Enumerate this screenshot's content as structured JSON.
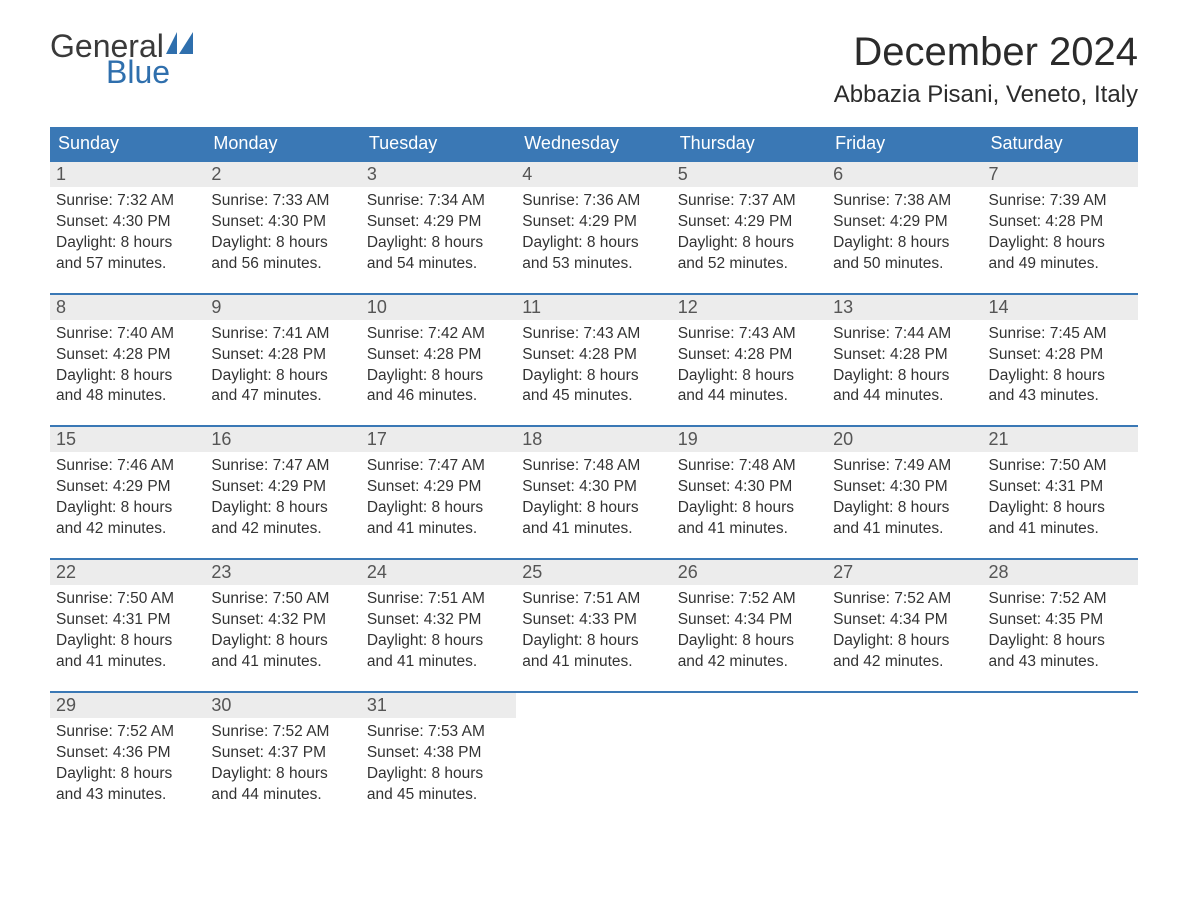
{
  "brand": {
    "word1": "General",
    "word2": "Blue",
    "word1_color": "#3a3a3a",
    "word2_color": "#2f6fad",
    "icon_color": "#2f6fad"
  },
  "title": {
    "month": "December 2024",
    "location": "Abbazia Pisani, Veneto, Italy"
  },
  "colors": {
    "header_bg": "#3a78b5",
    "header_text": "#ffffff",
    "daynum_bg": "#ececec",
    "daynum_text": "#555555",
    "body_text": "#333333",
    "week_border": "#3a78b5",
    "page_bg": "#ffffff"
  },
  "typography": {
    "month_title_fontsize": 40,
    "location_fontsize": 24,
    "dayhead_fontsize": 18,
    "daynum_fontsize": 18,
    "body_fontsize": 15.5,
    "font_family": "Arial"
  },
  "calendar": {
    "type": "table",
    "columns": [
      "Sunday",
      "Monday",
      "Tuesday",
      "Wednesday",
      "Thursday",
      "Friday",
      "Saturday"
    ],
    "weeks": [
      [
        {
          "num": "1",
          "sunrise": "Sunrise: 7:32 AM",
          "sunset": "Sunset: 4:30 PM",
          "day1": "Daylight: 8 hours",
          "day2": "and 57 minutes."
        },
        {
          "num": "2",
          "sunrise": "Sunrise: 7:33 AM",
          "sunset": "Sunset: 4:30 PM",
          "day1": "Daylight: 8 hours",
          "day2": "and 56 minutes."
        },
        {
          "num": "3",
          "sunrise": "Sunrise: 7:34 AM",
          "sunset": "Sunset: 4:29 PM",
          "day1": "Daylight: 8 hours",
          "day2": "and 54 minutes."
        },
        {
          "num": "4",
          "sunrise": "Sunrise: 7:36 AM",
          "sunset": "Sunset: 4:29 PM",
          "day1": "Daylight: 8 hours",
          "day2": "and 53 minutes."
        },
        {
          "num": "5",
          "sunrise": "Sunrise: 7:37 AM",
          "sunset": "Sunset: 4:29 PM",
          "day1": "Daylight: 8 hours",
          "day2": "and 52 minutes."
        },
        {
          "num": "6",
          "sunrise": "Sunrise: 7:38 AM",
          "sunset": "Sunset: 4:29 PM",
          "day1": "Daylight: 8 hours",
          "day2": "and 50 minutes."
        },
        {
          "num": "7",
          "sunrise": "Sunrise: 7:39 AM",
          "sunset": "Sunset: 4:28 PM",
          "day1": "Daylight: 8 hours",
          "day2": "and 49 minutes."
        }
      ],
      [
        {
          "num": "8",
          "sunrise": "Sunrise: 7:40 AM",
          "sunset": "Sunset: 4:28 PM",
          "day1": "Daylight: 8 hours",
          "day2": "and 48 minutes."
        },
        {
          "num": "9",
          "sunrise": "Sunrise: 7:41 AM",
          "sunset": "Sunset: 4:28 PM",
          "day1": "Daylight: 8 hours",
          "day2": "and 47 minutes."
        },
        {
          "num": "10",
          "sunrise": "Sunrise: 7:42 AM",
          "sunset": "Sunset: 4:28 PM",
          "day1": "Daylight: 8 hours",
          "day2": "and 46 minutes."
        },
        {
          "num": "11",
          "sunrise": "Sunrise: 7:43 AM",
          "sunset": "Sunset: 4:28 PM",
          "day1": "Daylight: 8 hours",
          "day2": "and 45 minutes."
        },
        {
          "num": "12",
          "sunrise": "Sunrise: 7:43 AM",
          "sunset": "Sunset: 4:28 PM",
          "day1": "Daylight: 8 hours",
          "day2": "and 44 minutes."
        },
        {
          "num": "13",
          "sunrise": "Sunrise: 7:44 AM",
          "sunset": "Sunset: 4:28 PM",
          "day1": "Daylight: 8 hours",
          "day2": "and 44 minutes."
        },
        {
          "num": "14",
          "sunrise": "Sunrise: 7:45 AM",
          "sunset": "Sunset: 4:28 PM",
          "day1": "Daylight: 8 hours",
          "day2": "and 43 minutes."
        }
      ],
      [
        {
          "num": "15",
          "sunrise": "Sunrise: 7:46 AM",
          "sunset": "Sunset: 4:29 PM",
          "day1": "Daylight: 8 hours",
          "day2": "and 42 minutes."
        },
        {
          "num": "16",
          "sunrise": "Sunrise: 7:47 AM",
          "sunset": "Sunset: 4:29 PM",
          "day1": "Daylight: 8 hours",
          "day2": "and 42 minutes."
        },
        {
          "num": "17",
          "sunrise": "Sunrise: 7:47 AM",
          "sunset": "Sunset: 4:29 PM",
          "day1": "Daylight: 8 hours",
          "day2": "and 41 minutes."
        },
        {
          "num": "18",
          "sunrise": "Sunrise: 7:48 AM",
          "sunset": "Sunset: 4:30 PM",
          "day1": "Daylight: 8 hours",
          "day2": "and 41 minutes."
        },
        {
          "num": "19",
          "sunrise": "Sunrise: 7:48 AM",
          "sunset": "Sunset: 4:30 PM",
          "day1": "Daylight: 8 hours",
          "day2": "and 41 minutes."
        },
        {
          "num": "20",
          "sunrise": "Sunrise: 7:49 AM",
          "sunset": "Sunset: 4:30 PM",
          "day1": "Daylight: 8 hours",
          "day2": "and 41 minutes."
        },
        {
          "num": "21",
          "sunrise": "Sunrise: 7:50 AM",
          "sunset": "Sunset: 4:31 PM",
          "day1": "Daylight: 8 hours",
          "day2": "and 41 minutes."
        }
      ],
      [
        {
          "num": "22",
          "sunrise": "Sunrise: 7:50 AM",
          "sunset": "Sunset: 4:31 PM",
          "day1": "Daylight: 8 hours",
          "day2": "and 41 minutes."
        },
        {
          "num": "23",
          "sunrise": "Sunrise: 7:50 AM",
          "sunset": "Sunset: 4:32 PM",
          "day1": "Daylight: 8 hours",
          "day2": "and 41 minutes."
        },
        {
          "num": "24",
          "sunrise": "Sunrise: 7:51 AM",
          "sunset": "Sunset: 4:32 PM",
          "day1": "Daylight: 8 hours",
          "day2": "and 41 minutes."
        },
        {
          "num": "25",
          "sunrise": "Sunrise: 7:51 AM",
          "sunset": "Sunset: 4:33 PM",
          "day1": "Daylight: 8 hours",
          "day2": "and 41 minutes."
        },
        {
          "num": "26",
          "sunrise": "Sunrise: 7:52 AM",
          "sunset": "Sunset: 4:34 PM",
          "day1": "Daylight: 8 hours",
          "day2": "and 42 minutes."
        },
        {
          "num": "27",
          "sunrise": "Sunrise: 7:52 AM",
          "sunset": "Sunset: 4:34 PM",
          "day1": "Daylight: 8 hours",
          "day2": "and 42 minutes."
        },
        {
          "num": "28",
          "sunrise": "Sunrise: 7:52 AM",
          "sunset": "Sunset: 4:35 PM",
          "day1": "Daylight: 8 hours",
          "day2": "and 43 minutes."
        }
      ],
      [
        {
          "num": "29",
          "sunrise": "Sunrise: 7:52 AM",
          "sunset": "Sunset: 4:36 PM",
          "day1": "Daylight: 8 hours",
          "day2": "and 43 minutes."
        },
        {
          "num": "30",
          "sunrise": "Sunrise: 7:52 AM",
          "sunset": "Sunset: 4:37 PM",
          "day1": "Daylight: 8 hours",
          "day2": "and 44 minutes."
        },
        {
          "num": "31",
          "sunrise": "Sunrise: 7:53 AM",
          "sunset": "Sunset: 4:38 PM",
          "day1": "Daylight: 8 hours",
          "day2": "and 45 minutes."
        },
        null,
        null,
        null,
        null
      ]
    ]
  }
}
